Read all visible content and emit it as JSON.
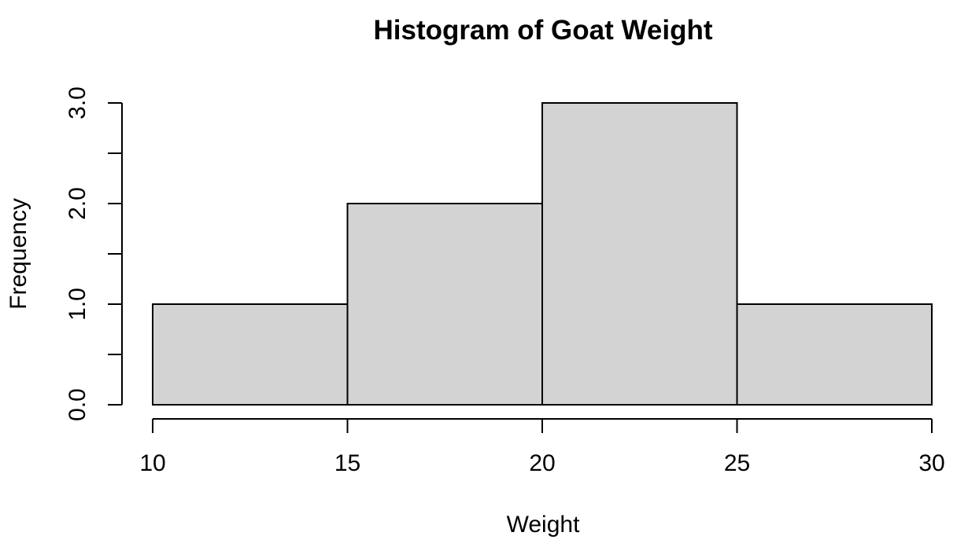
{
  "chart_data": {
    "type": "bar",
    "title": "Histogram of Goat Weight",
    "xlabel": "Weight",
    "ylabel": "Frequency",
    "bins": [
      {
        "start": 10,
        "end": 15,
        "count": 1
      },
      {
        "start": 15,
        "end": 20,
        "count": 2
      },
      {
        "start": 20,
        "end": 25,
        "count": 3
      },
      {
        "start": 25,
        "end": 30,
        "count": 1
      }
    ],
    "xlim": [
      10,
      30
    ],
    "ylim": [
      0,
      3
    ],
    "x_ticks": [
      10,
      15,
      20,
      25,
      30
    ],
    "x_tick_labels": [
      "10",
      "15",
      "20",
      "25",
      "30"
    ],
    "y_ticks": [
      0,
      0.5,
      1,
      1.5,
      2,
      2.5,
      3
    ],
    "y_labeled_ticks": [
      0,
      1,
      2,
      3
    ],
    "y_tick_labels": [
      "0.0",
      "1.0",
      "2.0",
      "3.0"
    ],
    "grid": false,
    "legend": "none",
    "colors": {
      "bar_fill": "#d3d3d3",
      "bar_stroke": "#000000",
      "axis": "#000000",
      "background": "#ffffff"
    }
  }
}
